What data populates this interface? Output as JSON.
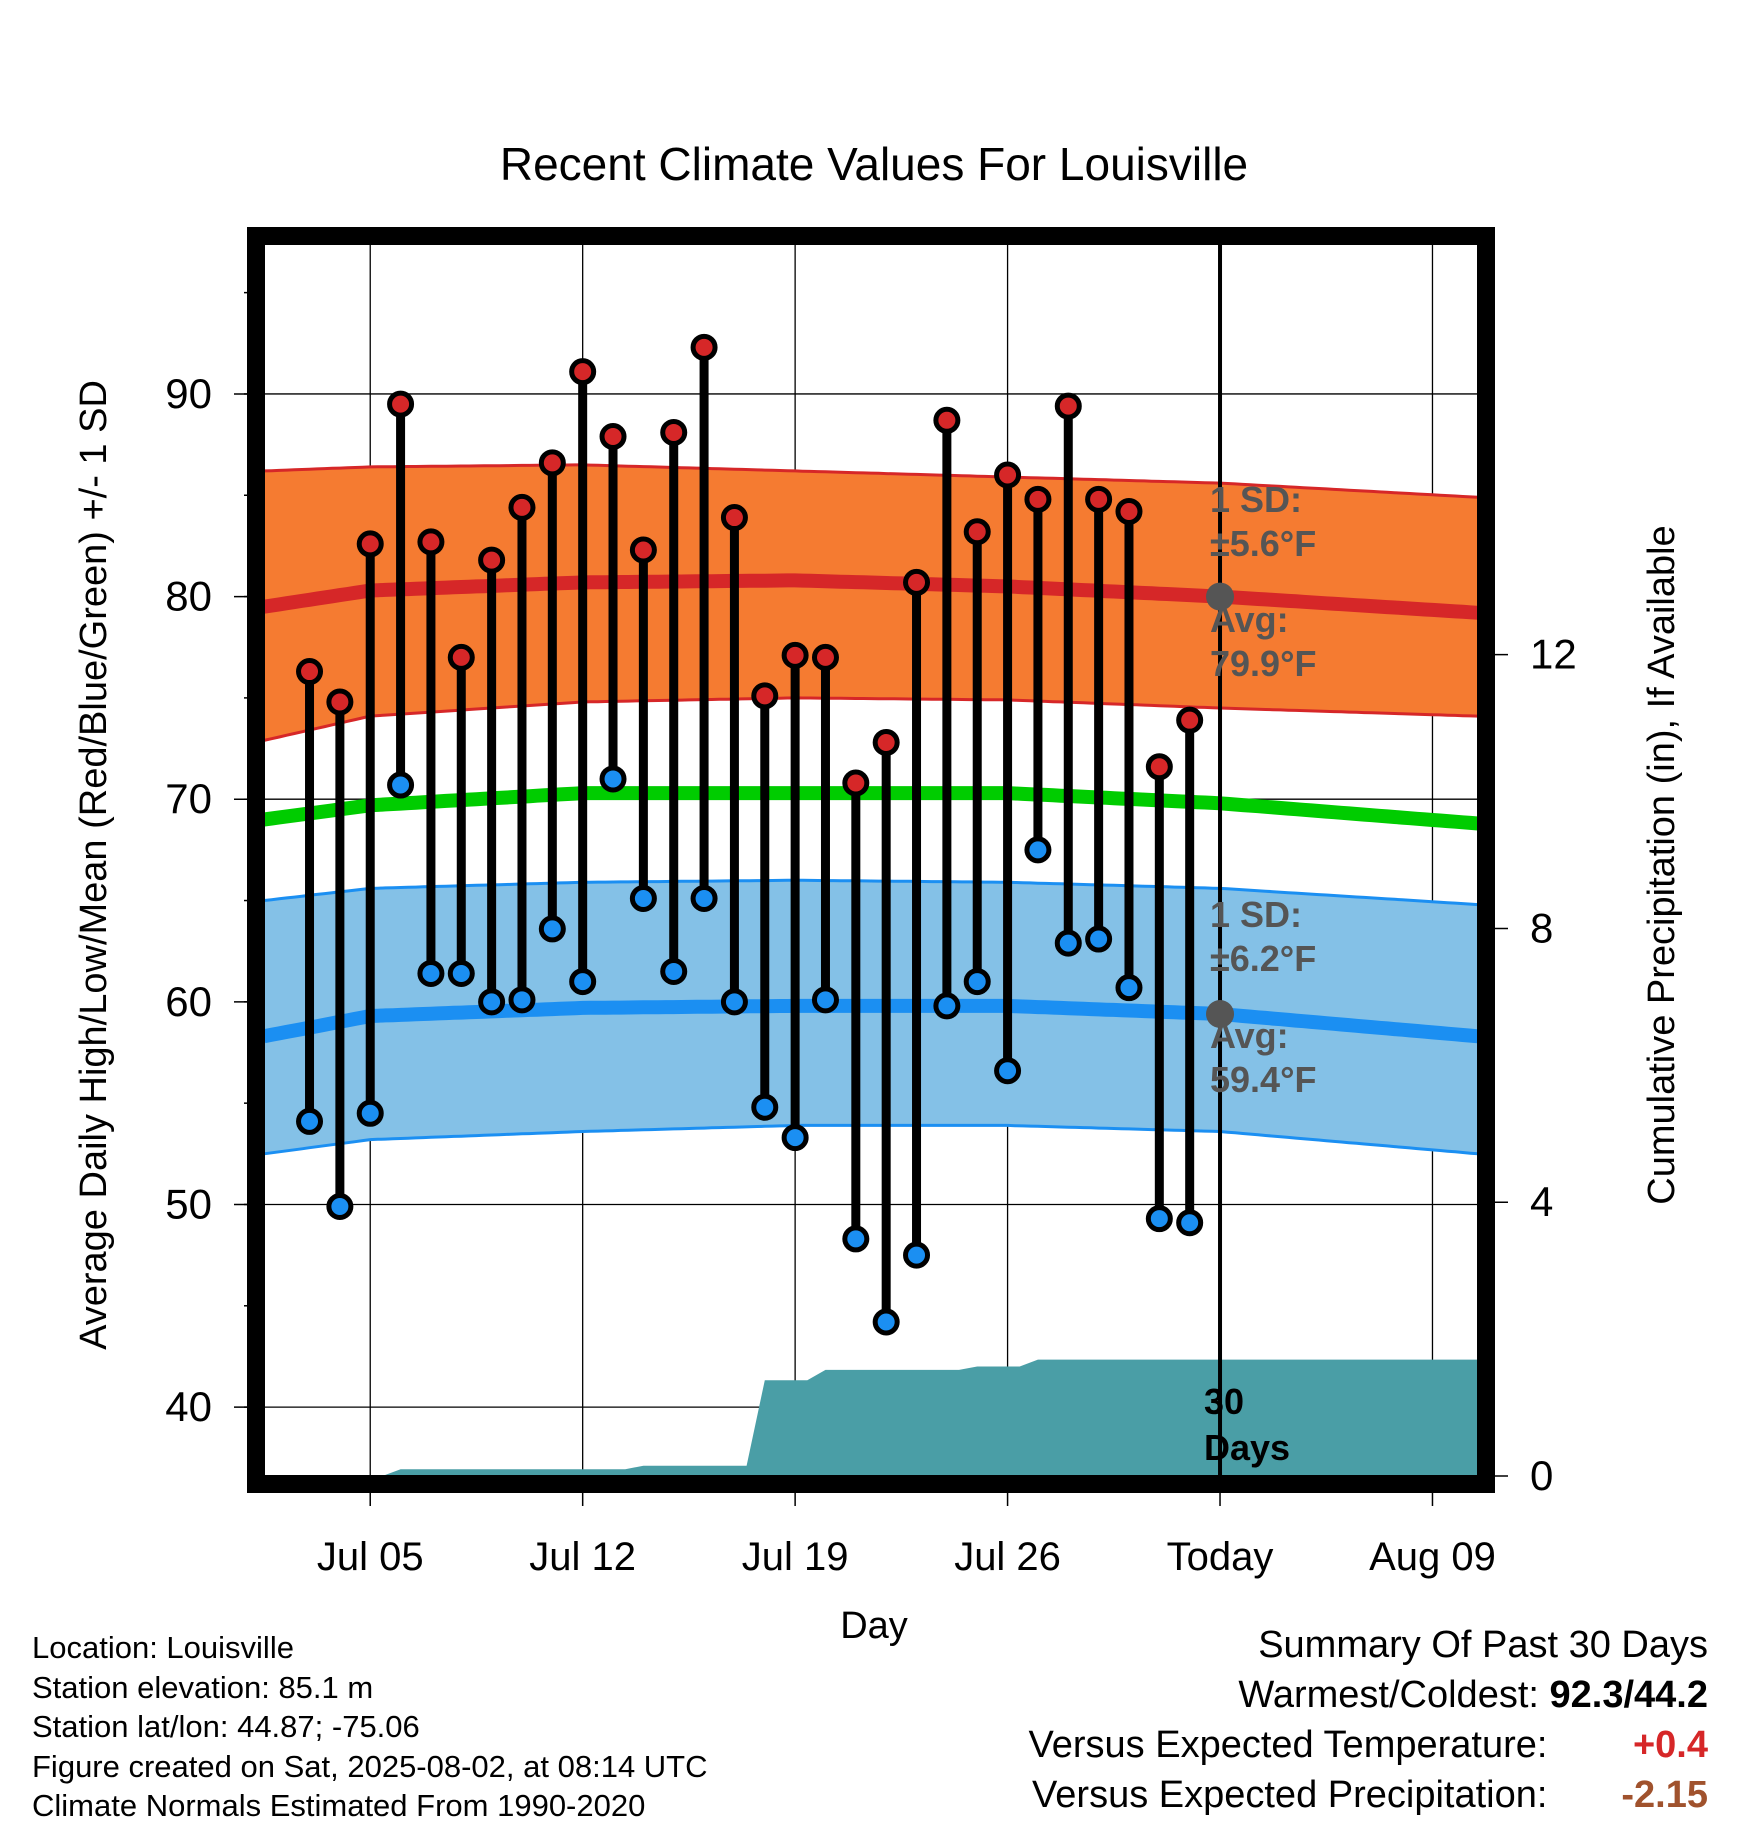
{
  "chart_data": {
    "type": "line",
    "title": "Recent Climate Values For Louisville",
    "xlabel": "Day",
    "ylabel_left": "Average Daily High/Low/Mean (Red/Blue/Green) +/- 1 SD",
    "ylabel_right": "Cumulative Precipitation (in), If Available",
    "ylim_left": [
      36.6,
      97.4
    ],
    "ylim_right": [
      0,
      18
    ],
    "yticks_left": [
      40,
      50,
      60,
      70,
      80,
      90
    ],
    "yticks_right": [
      0,
      4,
      8,
      12
    ],
    "x_tick_labels": [
      {
        "day": 4,
        "label": "Jul 05"
      },
      {
        "day": 11,
        "label": "Jul 12"
      },
      {
        "day": 18,
        "label": "Jul 19"
      },
      {
        "day": 25,
        "label": "Jul 26"
      },
      {
        "day": 32,
        "label": "Today"
      },
      {
        "day": 39,
        "label": "Aug 09"
      }
    ],
    "today_day": 32,
    "days": [
      2,
      3,
      4,
      5,
      6,
      7,
      8,
      9,
      10,
      11,
      12,
      13,
      14,
      15,
      16,
      17,
      18,
      19,
      20,
      21,
      22,
      23,
      24,
      25,
      26,
      27,
      28,
      29,
      30,
      31
    ],
    "highs": [
      76.3,
      74.8,
      82.6,
      89.5,
      82.7,
      77.0,
      81.8,
      84.4,
      86.6,
      91.1,
      87.9,
      82.3,
      88.1,
      92.3,
      83.9,
      75.1,
      77.1,
      77.0,
      70.8,
      72.8,
      80.7,
      88.7,
      83.2,
      86.0,
      84.8,
      89.4,
      84.8,
      84.2,
      71.6,
      73.9
    ],
    "lows": [
      54.1,
      49.9,
      54.5,
      70.7,
      61.4,
      61.4,
      60.0,
      60.1,
      63.6,
      61.0,
      71.0,
      65.1,
      61.5,
      65.1,
      60.0,
      54.8,
      53.3,
      60.1,
      48.3,
      44.2,
      47.5,
      59.8,
      61.0,
      56.6,
      67.5,
      62.9,
      63.1,
      60.7,
      49.3,
      49.1
    ],
    "normal_high": {
      "day": [
        0.5,
        4,
        11,
        18,
        25,
        32,
        40.5
      ],
      "avg": [
        79.5,
        80.3,
        80.7,
        80.8,
        80.5,
        80.0,
        79.2
      ],
      "upper": [
        86.2,
        86.4,
        86.5,
        86.2,
        85.9,
        85.6,
        84.9
      ],
      "lower": [
        72.9,
        74.1,
        74.8,
        75.0,
        74.9,
        74.5,
        74.1
      ]
    },
    "normal_low": {
      "day": [
        0.5,
        4,
        11,
        18,
        25,
        32,
        40.5
      ],
      "avg": [
        58.3,
        59.3,
        59.7,
        59.8,
        59.8,
        59.4,
        58.3
      ],
      "upper": [
        65.0,
        65.6,
        65.9,
        66.0,
        65.9,
        65.6,
        64.8
      ],
      "lower": [
        52.5,
        53.2,
        53.6,
        53.9,
        53.9,
        53.6,
        52.5
      ]
    },
    "normal_mean": {
      "day": [
        0.5,
        4,
        11,
        18,
        25,
        32,
        40.5
      ],
      "values": [
        69.0,
        69.7,
        70.3,
        70.3,
        70.3,
        69.8,
        68.8
      ]
    },
    "precip_cumulative": {
      "day": [
        0.5,
        2,
        3,
        4,
        5,
        6,
        7,
        8,
        9,
        10,
        11,
        12,
        13,
        14,
        15,
        16,
        17,
        18,
        19,
        20,
        21,
        22,
        23,
        24,
        25,
        26,
        27,
        28,
        29,
        30,
        31,
        32,
        40.5
      ],
      "values": [
        0,
        0,
        0,
        0,
        0.1,
        0.1,
        0.1,
        0.1,
        0.1,
        0.1,
        0.1,
        0.1,
        0.15,
        0.15,
        0.15,
        0.15,
        1.4,
        1.4,
        1.55,
        1.55,
        1.55,
        1.55,
        1.55,
        1.6,
        1.6,
        1.7,
        1.7,
        1.7,
        1.7,
        1.7,
        1.7,
        1.7,
        1.7
      ]
    },
    "annotations": {
      "high_sd_label": "1 SD:",
      "high_sd_value": "±5.6°F",
      "high_avg_label": "Avg:",
      "high_avg_value": "79.9°F",
      "low_sd_label": "1 SD:",
      "low_sd_value": "±6.2°F",
      "low_avg_label": "Avg:",
      "low_avg_value": "59.4°F",
      "period_number": "30",
      "period_unit": "Days"
    },
    "colors": {
      "high_band": "#f57b31",
      "high_line": "#d62728",
      "low_band": "#84c1e7",
      "low_line": "#1b8ff2",
      "mean_line": "#00cc00",
      "precip": "#4a9ea6",
      "high_marker": "#d62728",
      "low_marker": "#1b8ff2",
      "today_marker": "#555555",
      "annotation_text": "#555555"
    }
  },
  "footer": {
    "location": "Location: Louisville",
    "elevation": "Station elevation: 85.1 m",
    "latlon": "Station lat/lon: 44.87; -75.06",
    "created": "Figure created on Sat, 2025-08-02, at 08:14 UTC",
    "normals": "Climate Normals Estimated From 1990-2020"
  },
  "summary": {
    "title": "Summary Of Past 30 Days",
    "warm_cold_label": "Warmest/Coldest:",
    "warm_cold_value": "92.3/44.2",
    "temp_label": "Versus Expected Temperature:",
    "temp_value": "+0.4",
    "temp_color": "#d62728",
    "precip_label": "Versus Expected Precipitation:",
    "precip_value": "-2.15",
    "precip_color": "#a0522d"
  }
}
